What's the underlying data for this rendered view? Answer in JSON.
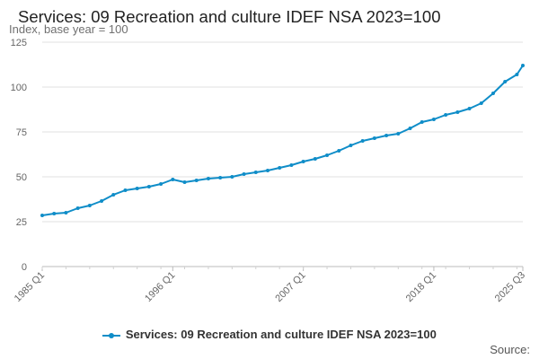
{
  "chart_data": {
    "type": "line",
    "title": "Services: 09 Recreation and culture IDEF NSA 2023=100",
    "ylabel": "Index, base year = 100",
    "xlabel": "",
    "ylim": [
      0,
      125
    ],
    "yticks": [
      0,
      25,
      50,
      75,
      100,
      125
    ],
    "xlim": [
      1985.0,
      2025.5
    ],
    "xticks": [
      {
        "label": "1985 Q1",
        "value": 1985.0
      },
      {
        "label": "1996 Q1",
        "value": 1996.0
      },
      {
        "label": "2007 Q1",
        "value": 2007.0
      },
      {
        "label": "2018 Q1",
        "value": 2018.0
      },
      {
        "label": "2025 Q3",
        "value": 2025.5
      }
    ],
    "grid": "horizontal",
    "legend_position": "bottom-center",
    "series": [
      {
        "name": "Services: 09 Recreation and culture IDEF NSA 2023=100",
        "color": "#0f8dc8",
        "x": [
          1985.0,
          1986.0,
          1987.0,
          1988.0,
          1989.0,
          1990.0,
          1991.0,
          1992.0,
          1993.0,
          1994.0,
          1995.0,
          1996.0,
          1997.0,
          1998.0,
          1999.0,
          2000.0,
          2001.0,
          2002.0,
          2003.0,
          2004.0,
          2005.0,
          2006.0,
          2007.0,
          2008.0,
          2009.0,
          2010.0,
          2011.0,
          2012.0,
          2013.0,
          2014.0,
          2015.0,
          2016.0,
          2017.0,
          2018.0,
          2019.0,
          2020.0,
          2021.0,
          2022.0,
          2023.0,
          2024.0,
          2025.0,
          2025.5
        ],
        "y": [
          28.5,
          29.5,
          30.0,
          32.5,
          34.0,
          36.5,
          40.0,
          42.5,
          43.5,
          44.5,
          46.0,
          48.5,
          47.0,
          48.0,
          49.0,
          49.5,
          50.0,
          51.5,
          52.5,
          53.5,
          55.0,
          56.5,
          58.5,
          60.0,
          62.0,
          64.5,
          67.5,
          70.0,
          71.5,
          73.0,
          74.0,
          77.0,
          80.5,
          82.0,
          84.5,
          86.0,
          88.0,
          91.0,
          96.5,
          103.0,
          107.0,
          112.0
        ]
      }
    ]
  },
  "source_label": "Source:"
}
